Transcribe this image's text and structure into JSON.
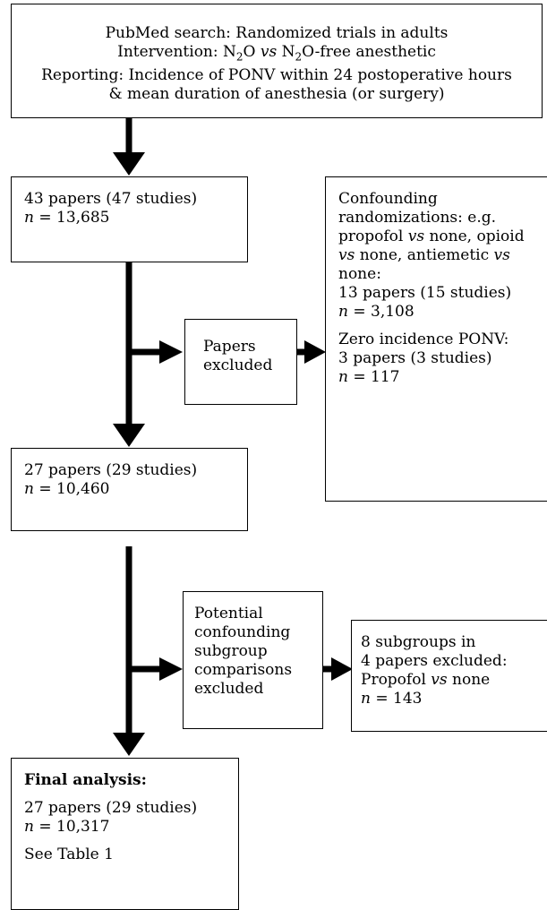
{
  "search_box": {
    "line1": "PubMed search: Randomized trials in adults",
    "line2_a": "Intervention:  N",
    "line2_sub1": "2",
    "line2_b": "O ",
    "line2_vs": "vs",
    "line2_c": " N",
    "line2_sub2": "2",
    "line2_d": "O-free anesthetic",
    "line3": "Reporting: Incidence of PONV within 24 postoperative hours",
    "line4": "& mean duration of anesthesia (or surgery)"
  },
  "box_initial": {
    "line1": "43 papers (47 studies)",
    "n_label": "n",
    "n_value": " = 13,685"
  },
  "box_excluded1": {
    "line1": "Papers",
    "line2": "excluded"
  },
  "box_reasons1": {
    "l1": "Confounding",
    "l2": "randomizations: e.g.",
    "l3a": "propofol ",
    "l3vs": "vs",
    "l3b": " none, opioid",
    "l4vs": "vs",
    "l4b": " none, antiemetic ",
    "l4vs2": "vs",
    "l5": "none:",
    "l6": "13 papers (15 studies)",
    "l7_n": "n",
    "l7_value": " = 3,108",
    "l8": "Zero incidence PONV:",
    "l9": "3 papers (3 studies)",
    "l10_n": "n",
    "l10_value": " = 117"
  },
  "box_middle": {
    "line1": "27 papers (29 studies)",
    "n_label": "n",
    "n_value": " = 10,460"
  },
  "box_excluded2": {
    "l1": "Potential",
    "l2": "confounding",
    "l3": "subgroup",
    "l4": "comparisons",
    "l5": "excluded"
  },
  "box_reasons2": {
    "l1": "8 subgroups in",
    "l2": "4 papers excluded:",
    "l3a": "Propofol ",
    "l3vs": "vs",
    "l3b": " none",
    "l4_n": "n",
    "l4_value": " = 143"
  },
  "box_final": {
    "title": "Final analysis:",
    "line1": "27 papers (29 studies)",
    "n_label": "n",
    "n_value": " = 10,317",
    "see": "See Table 1"
  }
}
